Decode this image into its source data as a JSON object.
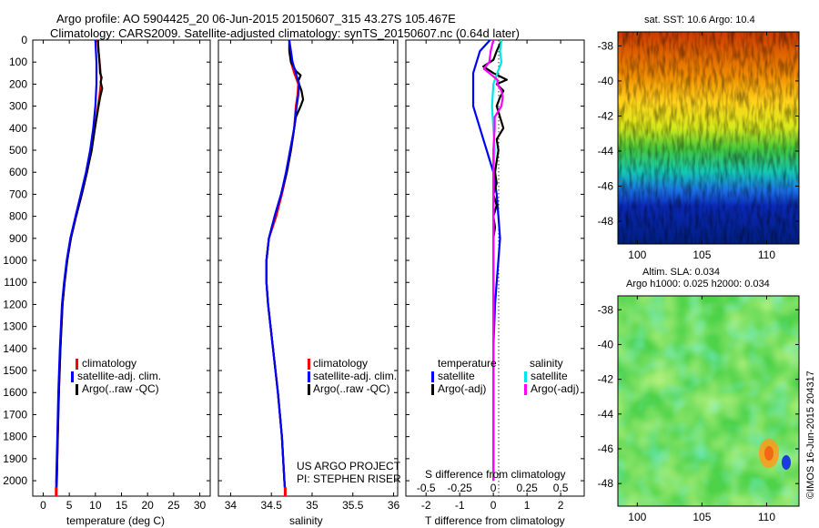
{
  "header": {
    "title_line1": "Argo profile: AO 5904425_20 06-Jun-2015 20150607_315 43.27S 105.467E",
    "title_line2": "Climatology: CARS2009. Satellite-adjusted climatology: synTS_20150607.nc (0.64d later)"
  },
  "colors": {
    "climatology": "#ff0000",
    "satellite_adj": "#0000ff",
    "argo": "#000000",
    "sal_satellite": "#00e6e6",
    "sal_argo": "#ff00ff"
  },
  "depth_axis": {
    "ticks": [
      "0",
      "100",
      "200",
      "300",
      "400",
      "500",
      "600",
      "700",
      "800",
      "900",
      "1000",
      "1100",
      "1200",
      "1300",
      "1400",
      "1500",
      "1600",
      "1700",
      "1800",
      "1900",
      "2000"
    ]
  },
  "chart_data": [
    {
      "type": "line",
      "id": "temperature",
      "xlabel": "temperature (deg C)",
      "xlim": [
        -2,
        32
      ],
      "xticks": [
        "0",
        "5",
        "10",
        "15",
        "20",
        "25",
        "30"
      ],
      "ylim": [
        0,
        2070
      ],
      "legend": [
        "climatology",
        "satellite-adj. clim.",
        "Argo(..raw -QC)"
      ],
      "series": [
        {
          "name": "climatology",
          "color": "#ff0000",
          "depth": [
            0,
            50,
            100,
            150,
            180,
            200,
            250,
            300,
            400,
            500,
            600,
            700,
            800,
            900,
            1000,
            1100,
            1200,
            1400,
            1600,
            1800,
            2000,
            2060
          ],
          "values": [
            10.4,
            10.6,
            10.8,
            11.0,
            11.1,
            11.0,
            10.8,
            10.5,
            9.9,
            9.2,
            8.4,
            7.4,
            6.3,
            5.3,
            4.6,
            4.1,
            3.7,
            3.3,
            3.0,
            2.8,
            2.6,
            2.5
          ]
        },
        {
          "name": "Argo(..raw -QC)",
          "color": "#000000",
          "depth": [
            0,
            50,
            100,
            150,
            170,
            190,
            220,
            260,
            300,
            400,
            500,
            600,
            700,
            800,
            900,
            1000,
            1100,
            1200,
            1400,
            1600,
            1800,
            2000,
            2050
          ],
          "values": [
            10.5,
            10.6,
            10.8,
            10.9,
            11.2,
            11.0,
            11.3,
            10.9,
            10.6,
            9.9,
            9.3,
            8.4,
            7.4,
            6.3,
            5.3,
            4.6,
            4.1,
            3.7,
            3.3,
            3.0,
            2.8,
            2.6,
            2.5
          ]
        },
        {
          "name": "satellite-adj. clim.",
          "color": "#0000ff",
          "depth": [
            0,
            50,
            100,
            150,
            200,
            250,
            300,
            400,
            500,
            600,
            700,
            800,
            900,
            1000,
            1100,
            1200,
            1400,
            1600,
            1800,
            2000,
            2050
          ],
          "values": [
            10.0,
            10.1,
            10.2,
            10.2,
            10.2,
            10.1,
            10.0,
            9.6,
            9.0,
            8.2,
            7.2,
            6.2,
            5.2,
            4.5,
            4.0,
            3.6,
            3.2,
            2.9,
            2.7,
            2.5,
            2.5
          ]
        }
      ]
    },
    {
      "type": "line",
      "id": "salinity",
      "xlabel": "salinity",
      "xlim": [
        33.85,
        36.05
      ],
      "xticks": [
        "34",
        "34.5",
        "35",
        "35.5",
        "36"
      ],
      "ylim": [
        0,
        2070
      ],
      "legend": [
        "climatology",
        "satellite-adj. clim.",
        "Argo(..raw -QC)"
      ],
      "annotation": [
        "US ARGO PROJECT",
        "PI: STEPHEN RISER"
      ],
      "series": [
        {
          "name": "climatology",
          "color": "#ff0000",
          "depth": [
            0,
            100,
            150,
            200,
            250,
            300,
            400,
            500,
            600,
            700,
            800,
            900,
            1000,
            1100,
            1200,
            1400,
            1600,
            1800,
            2000,
            2060
          ],
          "values": [
            34.72,
            34.74,
            34.78,
            34.83,
            34.82,
            34.8,
            34.78,
            34.74,
            34.69,
            34.63,
            34.56,
            34.47,
            34.44,
            34.44,
            34.46,
            34.52,
            34.58,
            34.63,
            34.66,
            34.67
          ]
        },
        {
          "name": "Argo(..raw -QC)",
          "color": "#000000",
          "depth": [
            0,
            50,
            100,
            140,
            160,
            185,
            200,
            230,
            270,
            300,
            350,
            400,
            500,
            600,
            700,
            800,
            900,
            1000,
            1100,
            1200,
            1400,
            1600,
            1800,
            2000,
            2050
          ],
          "values": [
            34.72,
            34.72,
            34.74,
            34.8,
            34.86,
            34.83,
            34.84,
            34.87,
            34.89,
            34.86,
            34.8,
            34.78,
            34.74,
            34.69,
            34.62,
            34.54,
            34.47,
            34.44,
            34.44,
            34.46,
            34.52,
            34.58,
            34.63,
            34.66,
            34.67
          ]
        },
        {
          "name": "satellite-adj. clim.",
          "color": "#0000ff",
          "depth": [
            0,
            100,
            150,
            200,
            250,
            300,
            400,
            500,
            600,
            700,
            800,
            900,
            1000,
            1100,
            1200,
            1400,
            1600,
            1800,
            2000,
            2050
          ],
          "values": [
            34.72,
            34.76,
            34.8,
            34.84,
            34.83,
            34.81,
            34.78,
            34.73,
            34.68,
            34.62,
            34.54,
            34.47,
            34.44,
            34.44,
            34.46,
            34.52,
            34.58,
            34.63,
            34.66,
            34.67
          ]
        }
      ]
    },
    {
      "type": "line",
      "id": "differences",
      "xlabel": "T difference from climatology",
      "xlabel_top": "S difference from climatology",
      "xlim": [
        -2.6,
        2.7
      ],
      "xticks": [
        "-2",
        "-1",
        "0",
        "1",
        "2"
      ],
      "xticks_top": [
        "-0.5",
        "-0.25",
        "0",
        "0.25",
        "0.5"
      ],
      "ylim": [
        0,
        2070
      ],
      "legend_groups": [
        {
          "title": "temperature",
          "items": [
            "satellite",
            "Argo(-adj)"
          ]
        },
        {
          "title": "salinity",
          "items": [
            "satellite",
            "Argo(-adj)"
          ]
        }
      ],
      "series": [
        {
          "name": "temperature satellite",
          "color": "#0000ff",
          "depth": [
            0,
            50,
            100,
            150,
            200,
            300,
            400,
            500,
            600,
            700,
            800,
            900,
            1000,
            1100,
            1200,
            1400,
            1600,
            1800,
            2000
          ],
          "values": [
            -0.1,
            -0.4,
            -0.5,
            -0.6,
            -0.6,
            -0.6,
            -0.4,
            -0.2,
            0.0,
            0.1,
            0.15,
            0.2,
            0.15,
            0.1,
            0.05,
            0.0,
            0.0,
            0.0,
            0.0
          ]
        },
        {
          "name": "temperature Argo(-adj)",
          "color": "#000000",
          "depth": [
            0,
            50,
            90,
            120,
            150,
            180,
            200,
            230,
            260,
            300,
            350,
            400,
            450,
            500,
            550,
            600,
            650,
            700,
            750,
            800,
            850,
            900,
            1000,
            1200,
            1400,
            1600,
            1800,
            2000
          ],
          "values": [
            0.25,
            0.1,
            0.0,
            -0.3,
            0.0,
            0.4,
            0.1,
            0.3,
            0.2,
            0.1,
            0.2,
            0.3,
            0.1,
            0.15,
            0.1,
            0.05,
            0.1,
            0.0,
            0.1,
            0.0,
            0.05,
            0.0,
            0.0,
            0.0,
            0.0,
            0.0,
            0.0,
            0.0
          ]
        },
        {
          "name": "salinity satellite",
          "color": "#00e6e6",
          "depth": [
            0,
            50,
            100,
            150,
            200,
            300,
            400,
            500,
            600,
            700,
            800,
            900,
            1000,
            1200,
            1400,
            1600,
            1800,
            2000
          ],
          "values": [
            0.06,
            0.05,
            0.06,
            0.03,
            0.0,
            -0.01,
            0.0,
            0.01,
            0.0,
            0.0,
            0.0,
            0.0,
            0.0,
            0.0,
            0.0,
            0.0,
            0.0,
            0.0
          ]
        },
        {
          "name": "salinity Argo(-adj)",
          "color": "#ff00ff",
          "depth": [
            0,
            50,
            100,
            130,
            150,
            180,
            200,
            230,
            260,
            300,
            350,
            400,
            500,
            600,
            700,
            800,
            900,
            1000,
            1200,
            1400,
            1600,
            1800,
            2000
          ],
          "values": [
            0.0,
            -0.02,
            -0.03,
            -0.07,
            -0.03,
            0.03,
            0.03,
            0.06,
            0.07,
            0.06,
            0.01,
            0.01,
            0.0,
            0.0,
            0.0,
            0.0,
            0.0,
            0.0,
            0.0,
            0.0,
            0.0,
            0.0,
            0.0
          ]
        }
      ]
    },
    {
      "type": "heatmap",
      "id": "sst_map",
      "title": "sat. SST: 10.6  Argo: 10.4",
      "xlim": [
        98.5,
        112.5
      ],
      "ylim": [
        -49.3,
        -37.2
      ],
      "xticks": [
        "100",
        "105",
        "110"
      ],
      "yticks": [
        "-38",
        "-40",
        "-42",
        "-44",
        "-46",
        "-48"
      ]
    },
    {
      "type": "heatmap",
      "id": "sla_map",
      "title_line1": "Altim. SLA: 0.034",
      "title_line2": "Argo h1000: 0.025 h2000: 0.034",
      "xlim": [
        98.5,
        112.5
      ],
      "ylim": [
        -49.3,
        -37.2
      ],
      "xticks": [
        "100",
        "105",
        "110"
      ],
      "yticks": [
        "-38",
        "-40",
        "-42",
        "-44",
        "-46",
        "-48"
      ]
    }
  ],
  "watermark": "©IMOS 16-Jun-2015 204317"
}
